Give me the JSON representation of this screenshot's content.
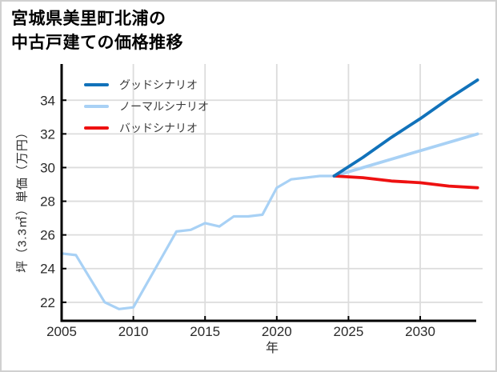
{
  "title": {
    "line1": "宮城県美里町北浦の",
    "line2": "中古戸建ての価格推移"
  },
  "legend": {
    "items": [
      {
        "id": "good",
        "label": "グッドシナリオ",
        "color": "#1172ba"
      },
      {
        "id": "normal",
        "label": "ノーマルシナリオ",
        "color": "#a8d1f5"
      },
      {
        "id": "bad",
        "label": "バッドシナリオ",
        "color": "#ee1111"
      }
    ]
  },
  "theme": {
    "background": "#ffffff",
    "border": "#d0d0d0",
    "grid": "#dcdcdc",
    "axis": "#000000",
    "tick_text": "#2a2a2a",
    "legend_text": "#3b3b3b"
  },
  "chart_data": {
    "type": "line",
    "title": "宮城県美里町北浦の中古戸建ての価格推移",
    "xlabel": "年",
    "ylabel": "坪（3.3㎡）単価（万円）",
    "xlim": [
      2005,
      2034.35
    ],
    "ylim": [
      20.9,
      36.15
    ],
    "x_ticks": [
      2005,
      2010,
      2015,
      2020,
      2025,
      2030
    ],
    "y_ticks": [
      22,
      24,
      26,
      28,
      30,
      32,
      34
    ],
    "grid": true,
    "legend_position": "upper-left",
    "series": [
      {
        "id": "historical",
        "legend": null,
        "color": "#a8d1f5",
        "x": [
          2005,
          2006,
          2007,
          2008,
          2009,
          2010,
          2011,
          2012,
          2013,
          2014,
          2015,
          2016,
          2017,
          2018,
          2019,
          2020,
          2021,
          2022,
          2023,
          2024
        ],
        "y": [
          24.9,
          24.8,
          23.4,
          22.0,
          21.6,
          21.7,
          23.2,
          24.7,
          26.2,
          26.3,
          26.7,
          26.5,
          27.1,
          27.1,
          27.2,
          28.8,
          29.3,
          29.4,
          29.5,
          29.5
        ]
      },
      {
        "id": "normal",
        "legend": "ノーマルシナリオ",
        "color": "#a8d1f5",
        "x": [
          2024,
          2026,
          2028,
          2030,
          2032,
          2034
        ],
        "y": [
          29.5,
          30.0,
          30.5,
          31.0,
          31.5,
          32.0
        ]
      },
      {
        "id": "bad",
        "legend": "バッドシナリオ",
        "color": "#ee1111",
        "x": [
          2024,
          2026,
          2028,
          2030,
          2032,
          2034
        ],
        "y": [
          29.5,
          29.4,
          29.2,
          29.1,
          28.9,
          28.8
        ]
      },
      {
        "id": "good",
        "legend": "グッドシナリオ",
        "color": "#1172ba",
        "x": [
          2024,
          2026,
          2028,
          2030,
          2032,
          2034
        ],
        "y": [
          29.5,
          30.6,
          31.8,
          32.9,
          34.1,
          35.2
        ]
      }
    ]
  }
}
